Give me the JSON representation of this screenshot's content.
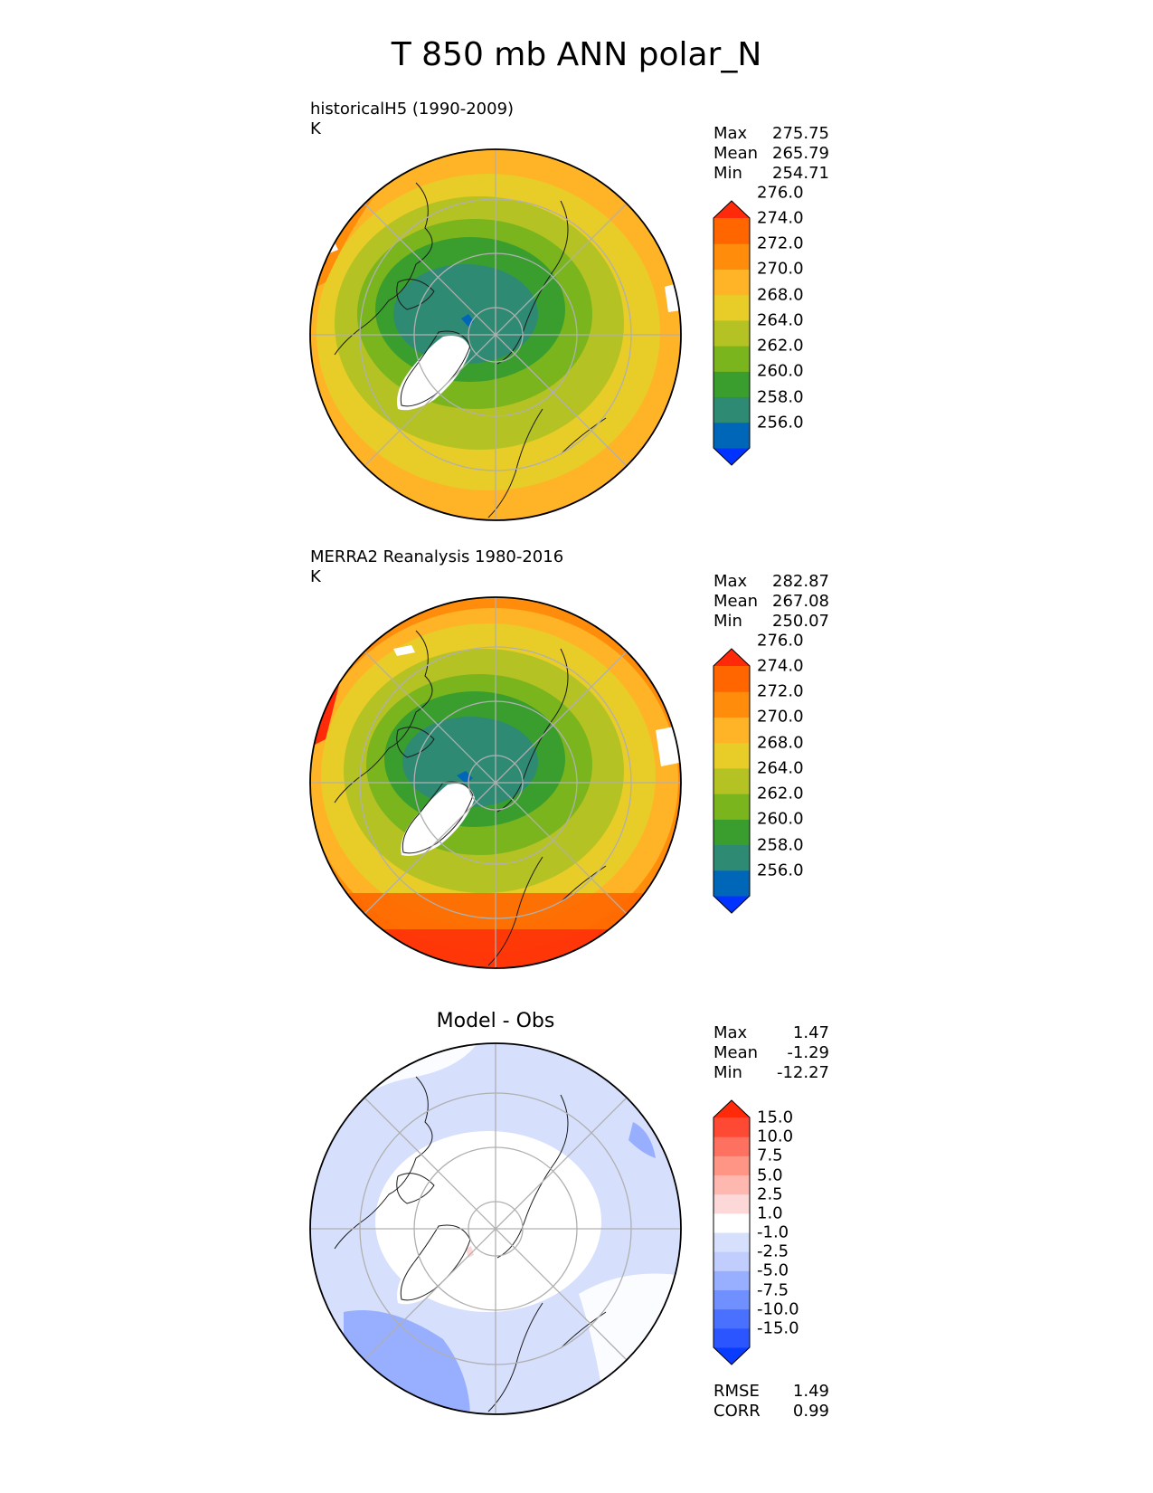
{
  "title": "T 850 mb ANN polar_N",
  "panels": [
    {
      "id": "test",
      "label_line1": "historicalH5 (1990-2009)",
      "label_line2": "K",
      "stats": [
        {
          "label": "Max",
          "value": "275.75"
        },
        {
          "label": "Mean",
          "value": "265.79"
        },
        {
          "label": "Min",
          "value": "254.71"
        }
      ],
      "colorbar": {
        "colors": [
          "#0033ff",
          "#0066b8",
          "#2e8a73",
          "#3a9e2f",
          "#7ab51d",
          "#b5c223",
          "#e8cc28",
          "#ffb326",
          "#ff8c0a",
          "#ff6600",
          "#ff2a0a"
        ],
        "tick_labels": [
          "256.0",
          "258.0",
          "260.0",
          "262.0",
          "264.0",
          "268.0",
          "270.0",
          "272.0",
          "274.0",
          "276.0"
        ]
      }
    },
    {
      "id": "reference",
      "label_line1": "MERRA2 Reanalysis 1980-2016",
      "label_line2": "K",
      "stats": [
        {
          "label": "Max",
          "value": "282.87"
        },
        {
          "label": "Mean",
          "value": "267.08"
        },
        {
          "label": "Min",
          "value": "250.07"
        }
      ],
      "colorbar": {
        "colors": [
          "#0033ff",
          "#0066b8",
          "#2e8a73",
          "#3a9e2f",
          "#7ab51d",
          "#b5c223",
          "#e8cc28",
          "#ffb326",
          "#ff8c0a",
          "#ff6600",
          "#ff2a0a"
        ],
        "tick_labels": [
          "256.0",
          "258.0",
          "260.0",
          "262.0",
          "264.0",
          "268.0",
          "270.0",
          "272.0",
          "274.0",
          "276.0"
        ]
      }
    },
    {
      "id": "difference",
      "subtitle": "Model - Obs",
      "stats": [
        {
          "label": "Max",
          "value": "1.47"
        },
        {
          "label": "Mean",
          "value": "-1.29"
        },
        {
          "label": "Min",
          "value": "-12.27"
        }
      ],
      "extra_stats": [
        {
          "label": "RMSE",
          "value": "1.49"
        },
        {
          "label": "CORR",
          "value": "0.99"
        }
      ],
      "colorbar": {
        "colors": [
          "#0a3cff",
          "#2a55ff",
          "#4a70ff",
          "#7090ff",
          "#98aefe",
          "#c0cdfd",
          "#d6e0fc",
          "#ffffff",
          "#fdd8d8",
          "#feb8b0",
          "#fe9585",
          "#fe7060",
          "#fe4a35",
          "#ff2a0a"
        ],
        "tick_labels": [
          "-15.0",
          "-10.0",
          "-7.5",
          "-5.0",
          "-2.5",
          "-1.0",
          "1.0",
          "2.5",
          "5.0",
          "7.5",
          "10.0",
          "15.0"
        ]
      }
    }
  ]
}
